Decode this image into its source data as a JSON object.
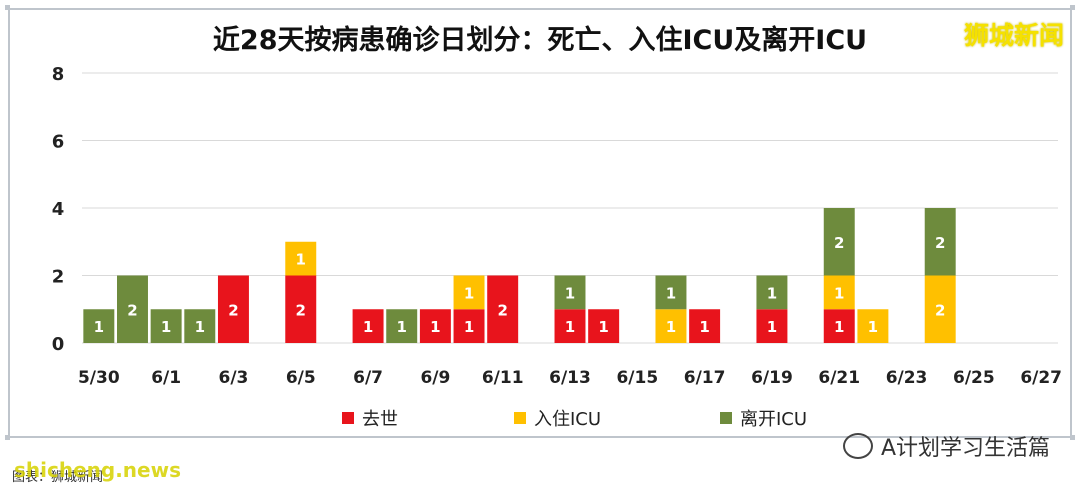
{
  "header": {
    "title": "近28天按病患确诊日划分：死亡、入住ICU及离开ICU",
    "brand": "狮城新闻"
  },
  "footer": {
    "watermark": "shicheng.news",
    "source": "图表：狮城新闻",
    "wechat_label": "A计划学习生活篇"
  },
  "colors": {
    "death": "#e8141c",
    "icu_in": "#ffc000",
    "icu_out": "#6e8b3d"
  },
  "chart_data": {
    "type": "bar",
    "stacked": true,
    "title": "近28天按病患确诊日划分：死亡、入住ICU及离开ICU",
    "ylim": [
      0,
      8
    ],
    "yticks": [
      0,
      2,
      4,
      6,
      8
    ],
    "grid": true,
    "legend_position": "bottom",
    "categories": [
      "5/30",
      "5/31",
      "6/1",
      "6/2",
      "6/3",
      "6/4",
      "6/5",
      "6/6",
      "6/7",
      "6/8",
      "6/9",
      "6/10",
      "6/11",
      "6/12",
      "6/13",
      "6/14",
      "6/15",
      "6/16",
      "6/17",
      "6/18",
      "6/19",
      "6/20",
      "6/21",
      "6/22",
      "6/23",
      "6/24",
      "6/25",
      "6/26",
      "6/27"
    ],
    "xtick_labels": [
      "5/30",
      "6/1",
      "6/3",
      "6/5",
      "6/7",
      "6/9",
      "6/11",
      "6/13",
      "6/15",
      "6/17",
      "6/19",
      "6/21",
      "6/23",
      "6/25",
      "6/27"
    ],
    "series": [
      {
        "name": "去世",
        "color": "#e8141c",
        "values": [
          0,
          0,
          0,
          0,
          2,
          0,
          2,
          0,
          1,
          0,
          1,
          1,
          2,
          0,
          1,
          1,
          0,
          0,
          1,
          0,
          1,
          0,
          1,
          0,
          0,
          0,
          0,
          0,
          0
        ]
      },
      {
        "name": "入住ICU",
        "color": "#ffc000",
        "values": [
          0,
          0,
          0,
          0,
          0,
          0,
          1,
          0,
          0,
          0,
          0,
          1,
          0,
          0,
          0,
          0,
          0,
          1,
          0,
          0,
          0,
          0,
          1,
          1,
          0,
          2,
          0,
          0,
          0
        ]
      },
      {
        "name": "离开ICU",
        "color": "#6e8b3d",
        "values": [
          1,
          2,
          1,
          1,
          0,
          0,
          0,
          0,
          0,
          1,
          0,
          0,
          0,
          0,
          1,
          0,
          0,
          1,
          0,
          0,
          1,
          0,
          2,
          0,
          0,
          2,
          0,
          0,
          0
        ]
      }
    ]
  }
}
